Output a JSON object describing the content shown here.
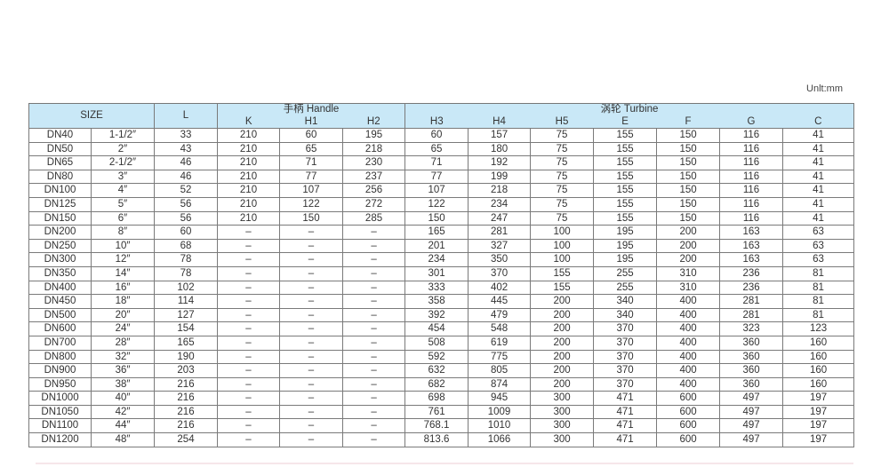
{
  "unit_label": "Unlt:mm",
  "header": {
    "size": "SIZE",
    "l": "L",
    "handle_group": "手柄 Handle",
    "turbine_group": "涡轮 Turbine",
    "handle_cols": [
      "K",
      "H1",
      "H2"
    ],
    "turbine_cols": [
      "H3",
      "H4",
      "H5",
      "E",
      "F",
      "G",
      "C"
    ]
  },
  "rows": [
    [
      "DN40",
      "1-1/2″",
      "33",
      "210",
      "60",
      "195",
      "60",
      "157",
      "75",
      "155",
      "150",
      "116",
      "41"
    ],
    [
      "DN50",
      "2″",
      "43",
      "210",
      "65",
      "218",
      "65",
      "180",
      "75",
      "155",
      "150",
      "116",
      "41"
    ],
    [
      "DN65",
      "2-1/2″",
      "46",
      "210",
      "71",
      "230",
      "71",
      "192",
      "75",
      "155",
      "150",
      "116",
      "41"
    ],
    [
      "DN80",
      "3″",
      "46",
      "210",
      "77",
      "237",
      "77",
      "199",
      "75",
      "155",
      "150",
      "116",
      "41"
    ],
    [
      "DN100",
      "4″",
      "52",
      "210",
      "107",
      "256",
      "107",
      "218",
      "75",
      "155",
      "150",
      "116",
      "41"
    ],
    [
      "DN125",
      "5″",
      "56",
      "210",
      "122",
      "272",
      "122",
      "234",
      "75",
      "155",
      "150",
      "116",
      "41"
    ],
    [
      "DN150",
      "6″",
      "56",
      "210",
      "150",
      "285",
      "150",
      "247",
      "75",
      "155",
      "150",
      "116",
      "41"
    ],
    [
      "DN200",
      "8″",
      "60",
      "–",
      "–",
      "–",
      "165",
      "281",
      "100",
      "195",
      "200",
      "163",
      "63"
    ],
    [
      "DN250",
      "10″",
      "68",
      "–",
      "–",
      "–",
      "201",
      "327",
      "100",
      "195",
      "200",
      "163",
      "63"
    ],
    [
      "DN300",
      "12″",
      "78",
      "–",
      "–",
      "–",
      "234",
      "350",
      "100",
      "195",
      "200",
      "163",
      "63"
    ],
    [
      "DN350",
      "14″",
      "78",
      "–",
      "–",
      "–",
      "301",
      "370",
      "155",
      "255",
      "310",
      "236",
      "81"
    ],
    [
      "DN400",
      "16″",
      "102",
      "–",
      "–",
      "–",
      "333",
      "402",
      "155",
      "255",
      "310",
      "236",
      "81"
    ],
    [
      "DN450",
      "18″",
      "114",
      "–",
      "–",
      "–",
      "358",
      "445",
      "200",
      "340",
      "400",
      "281",
      "81"
    ],
    [
      "DN500",
      "20″",
      "127",
      "–",
      "–",
      "–",
      "392",
      "479",
      "200",
      "340",
      "400",
      "281",
      "81"
    ],
    [
      "DN600",
      "24″",
      "154",
      "–",
      "–",
      "–",
      "454",
      "548",
      "200",
      "370",
      "400",
      "323",
      "123"
    ],
    [
      "DN700",
      "28″",
      "165",
      "–",
      "–",
      "–",
      "508",
      "619",
      "200",
      "370",
      "400",
      "360",
      "160"
    ],
    [
      "DN800",
      "32″",
      "190",
      "–",
      "–",
      "–",
      "592",
      "775",
      "200",
      "370",
      "400",
      "360",
      "160"
    ],
    [
      "DN900",
      "36″",
      "203",
      "–",
      "–",
      "–",
      "632",
      "805",
      "200",
      "370",
      "400",
      "360",
      "160"
    ],
    [
      "DN950",
      "38″",
      "216",
      "–",
      "–",
      "–",
      "682",
      "874",
      "200",
      "370",
      "400",
      "360",
      "160"
    ],
    [
      "DN1000",
      "40″",
      "216",
      "–",
      "–",
      "–",
      "698",
      "945",
      "300",
      "471",
      "600",
      "497",
      "197"
    ],
    [
      "DN1050",
      "42″",
      "216",
      "–",
      "–",
      "–",
      "761",
      "1009",
      "300",
      "471",
      "600",
      "497",
      "197"
    ],
    [
      "DN1100",
      "44″",
      "216",
      "–",
      "–",
      "–",
      "768.1",
      "1010",
      "300",
      "471",
      "600",
      "497",
      "197"
    ],
    [
      "DN1200",
      "48″",
      "254",
      "–",
      "–",
      "–",
      "813.6",
      "1066",
      "300",
      "471",
      "600",
      "497",
      "197"
    ]
  ]
}
